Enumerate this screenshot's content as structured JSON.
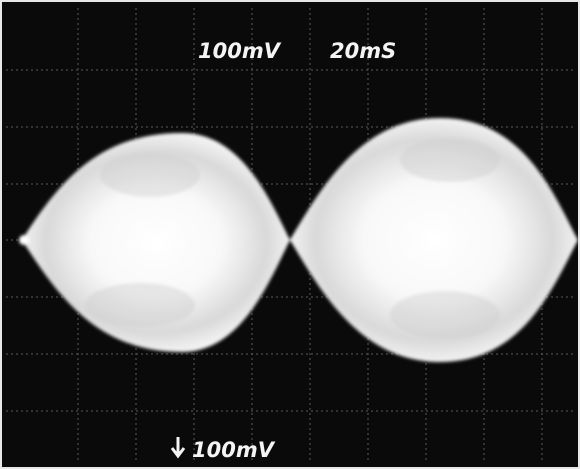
{
  "screen": {
    "volts_per_div": "100mV",
    "time_per_div": "20mS",
    "channel_scale": "100mV"
  }
}
